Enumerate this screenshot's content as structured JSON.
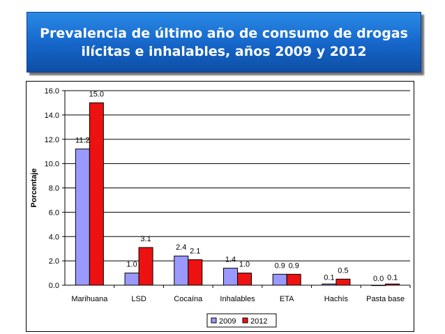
{
  "title": {
    "line1": "Prevalencia de último año de consumo de drogas",
    "line2": "ilícitas e inhalables, años 2009 y 2012"
  },
  "chart_data": {
    "type": "bar",
    "categories": [
      "Marihuana",
      "LSD",
      "Cocaína",
      "Inhalables",
      "ETA",
      "Hachís",
      "Pasta base"
    ],
    "series": [
      {
        "name": "2009",
        "values": [
          11.2,
          1.0,
          2.4,
          1.4,
          0.9,
          0.1,
          0.0
        ],
        "labels": [
          "11.2",
          "1.0",
          "2.4",
          "1.4",
          "0.9",
          "0.1",
          "0.0"
        ],
        "color": "#9999ff"
      },
      {
        "name": "2012",
        "values": [
          15.0,
          3.1,
          2.1,
          1.0,
          0.9,
          0.5,
          0.1
        ],
        "labels": [
          "15.0",
          "3.1",
          "2.1",
          "1.0",
          "0.9",
          "0.5",
          "0.1"
        ],
        "color": "#ee1111"
      }
    ],
    "ylabel": "Porcentaje",
    "xlabel": "",
    "ylim": [
      0,
      16
    ],
    "yticks": [
      "0.0",
      "2.0",
      "4.0",
      "6.0",
      "8.0",
      "10.0",
      "12.0",
      "14.0",
      "16.0"
    ],
    "grid": true,
    "legend": "bottom-center"
  }
}
